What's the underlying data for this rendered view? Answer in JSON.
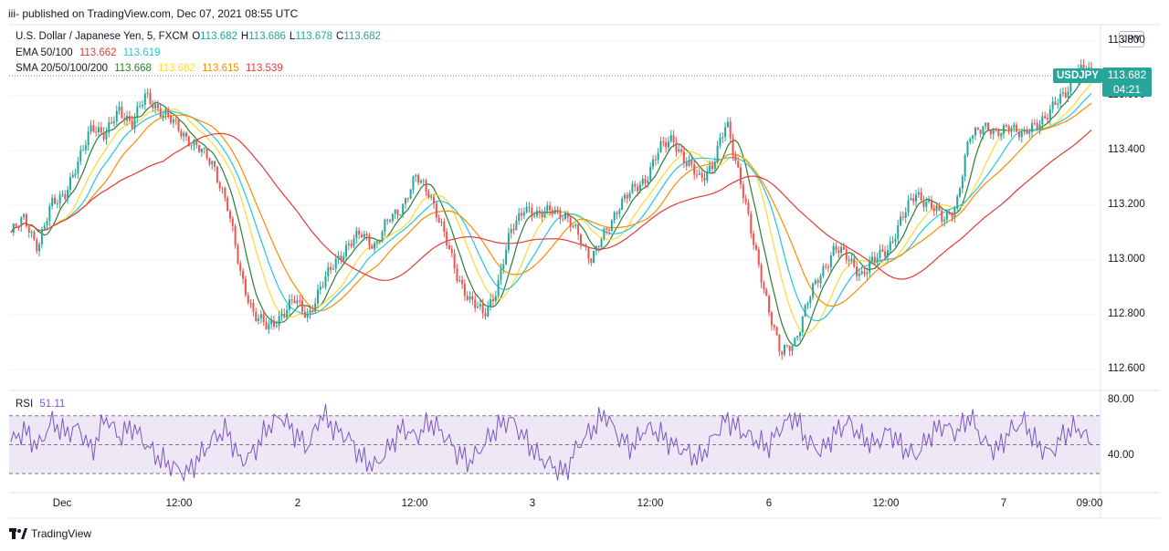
{
  "header": {
    "publisher_line": "iii- published on TradingView.com, Dec 07, 2021 08:55 UTC"
  },
  "legend": {
    "symbol": "U.S. Dollar / Japanese Yen, 5, FXCM",
    "o_label": "O",
    "o": "113.682",
    "h_label": "H",
    "h": "113.686",
    "l_label": "L",
    "l": "113.678",
    "c_label": "C",
    "c": "113.682",
    "ema_label": "EMA 50/100",
    "ema_values": [
      {
        "value": "113.662",
        "color": "#e53935"
      },
      {
        "value": "113.619",
        "color": "#26c6da"
      }
    ],
    "sma_label": "SMA 20/50/100/200",
    "sma_values": [
      {
        "value": "113.668",
        "color": "#2e7d32"
      },
      {
        "value": "113.682",
        "color": "#fdd835"
      },
      {
        "value": "113.615",
        "color": "#fb8c00"
      },
      {
        "value": "113.539",
        "color": "#e53935"
      }
    ]
  },
  "price_axis": {
    "currency": "JPY",
    "ticks": [
      "113.800",
      "113.600",
      "113.400",
      "113.200",
      "113.000",
      "112.800",
      "112.600"
    ],
    "last_price_label": "113.682",
    "countdown": "04:21",
    "symbol_tag": "USDJPY"
  },
  "rsi": {
    "label": "RSI",
    "value": "51.11",
    "ticks": [
      "80.00",
      "40.00"
    ],
    "color": "#7e57c2",
    "band_color": "#ede7f6"
  },
  "time_axis": {
    "ticks": [
      "Dec",
      "12:00",
      "2",
      "12:00",
      "3",
      "12:00",
      "6",
      "12:00",
      "7",
      "09:00"
    ]
  },
  "footer": {
    "brand": "TradingView"
  },
  "chart_data": {
    "type": "line",
    "title": "U.S. Dollar / Japanese Yen, 5, FXCM",
    "ylim": [
      112.55,
      113.85
    ],
    "x_ticks": [
      "Dec",
      "12:00",
      "2",
      "12:00",
      "3",
      "12:00",
      "6",
      "12:00",
      "7",
      "09:00"
    ],
    "close_series": [
      113.1,
      113.15,
      113.05,
      113.2,
      113.25,
      113.35,
      113.5,
      113.45,
      113.55,
      113.5,
      113.6,
      113.55,
      113.5,
      113.45,
      113.4,
      113.35,
      113.2,
      112.95,
      112.8,
      112.75,
      112.8,
      112.85,
      112.8,
      112.9,
      113.0,
      113.05,
      113.1,
      113.05,
      113.15,
      113.2,
      113.3,
      113.25,
      113.1,
      112.95,
      112.85,
      112.8,
      112.9,
      113.1,
      113.2,
      113.15,
      113.2,
      113.15,
      113.1,
      113.0,
      113.1,
      113.2,
      113.25,
      113.3,
      113.4,
      113.45,
      113.35,
      113.3,
      113.35,
      113.5,
      113.3,
      113.05,
      112.85,
      112.65,
      112.7,
      112.85,
      112.95,
      113.05,
      113.0,
      112.95,
      113.0,
      113.05,
      113.15,
      113.25,
      113.2,
      113.15,
      113.2,
      113.45,
      113.5,
      113.45,
      113.5,
      113.45,
      113.5,
      113.55,
      113.6,
      113.7,
      113.68
    ],
    "rsi_series": [
      52,
      60,
      48,
      66,
      58,
      62,
      45,
      70,
      55,
      63,
      50,
      40,
      35,
      30,
      42,
      55,
      60,
      38,
      45,
      62,
      70,
      58,
      48,
      72,
      60,
      55,
      40,
      35,
      48,
      62,
      55,
      66,
      58,
      45,
      38,
      50,
      62,
      68,
      55,
      42,
      36,
      30,
      50,
      60,
      72,
      55,
      48,
      62,
      58,
      50,
      45,
      40,
      55,
      68,
      60,
      54,
      48,
      62,
      70,
      52,
      45,
      58,
      66,
      55,
      50,
      60,
      48,
      42,
      56,
      64,
      58,
      70,
      52,
      46,
      60,
      66,
      50,
      44,
      58,
      62,
      51
    ],
    "rsi_ylim": [
      20,
      85
    ],
    "rsi_levels": [
      70,
      50,
      30
    ]
  }
}
